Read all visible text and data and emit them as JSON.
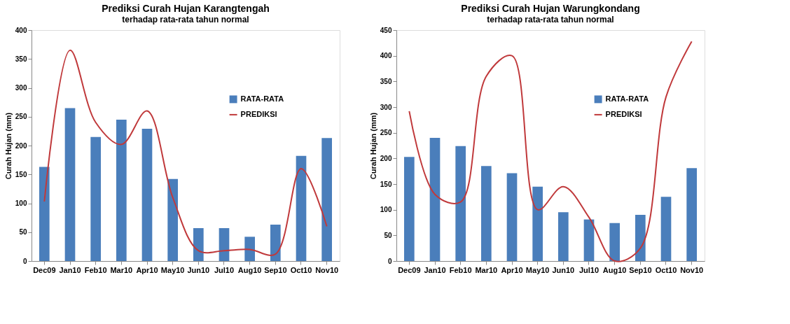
{
  "chart_data": [
    {
      "type": "bar",
      "title": "Prediksi Curah Hujan Karangtengah",
      "subtitle": "terhadap rata-rata tahun normal",
      "ylabel": "Curah Hujan (mm)",
      "categories": [
        "Dec09",
        "Jan10",
        "Feb10",
        "Mar10",
        "Apr10",
        "May10",
        "Jun10",
        "Jul10",
        "Aug10",
        "Sep10",
        "Oct10",
        "Nov10"
      ],
      "series": [
        {
          "name": "RATA-RATA",
          "type": "bar",
          "color": "#4a7ebb",
          "values": [
            163,
            265,
            215,
            245,
            229,
            142,
            57,
            57,
            42,
            63,
            182,
            213
          ]
        },
        {
          "name": "PREDIKSI",
          "type": "line",
          "color": "#c0393b",
          "values": [
            103,
            365,
            240,
            202,
            260,
            110,
            18,
            18,
            20,
            12,
            160,
            60
          ]
        }
      ],
      "ylim": [
        0,
        400
      ],
      "yticks": [
        0,
        50,
        100,
        150,
        200,
        250,
        300,
        350,
        400
      ],
      "legend": "right",
      "grid": false
    },
    {
      "type": "bar",
      "title": "Prediksi Curah Hujan Warungkondang",
      "subtitle": "terhadap rata-rata tahun normal",
      "ylabel": "Curah Hujan (mm)",
      "categories": [
        "Dec09",
        "Jan10",
        "Feb10",
        "Mar10",
        "Apr10",
        "May10",
        "Jun10",
        "Jul10",
        "Aug10",
        "Sep10",
        "Oct10",
        "Nov10"
      ],
      "series": [
        {
          "name": "RATA-RATA",
          "type": "bar",
          "color": "#4a7ebb",
          "values": [
            203,
            240,
            224,
            185,
            171,
            145,
            95,
            81,
            74,
            90,
            125,
            181
          ]
        },
        {
          "name": "PREDIKSI",
          "type": "line",
          "color": "#c0393b",
          "values": [
            292,
            130,
            115,
            360,
            400,
            100,
            145,
            85,
            0,
            25,
            320,
            428
          ]
        }
      ],
      "ylim": [
        0,
        450
      ],
      "yticks": [
        0,
        50,
        100,
        150,
        200,
        250,
        300,
        350,
        400,
        450
      ],
      "legend": "right",
      "grid": false
    }
  ]
}
